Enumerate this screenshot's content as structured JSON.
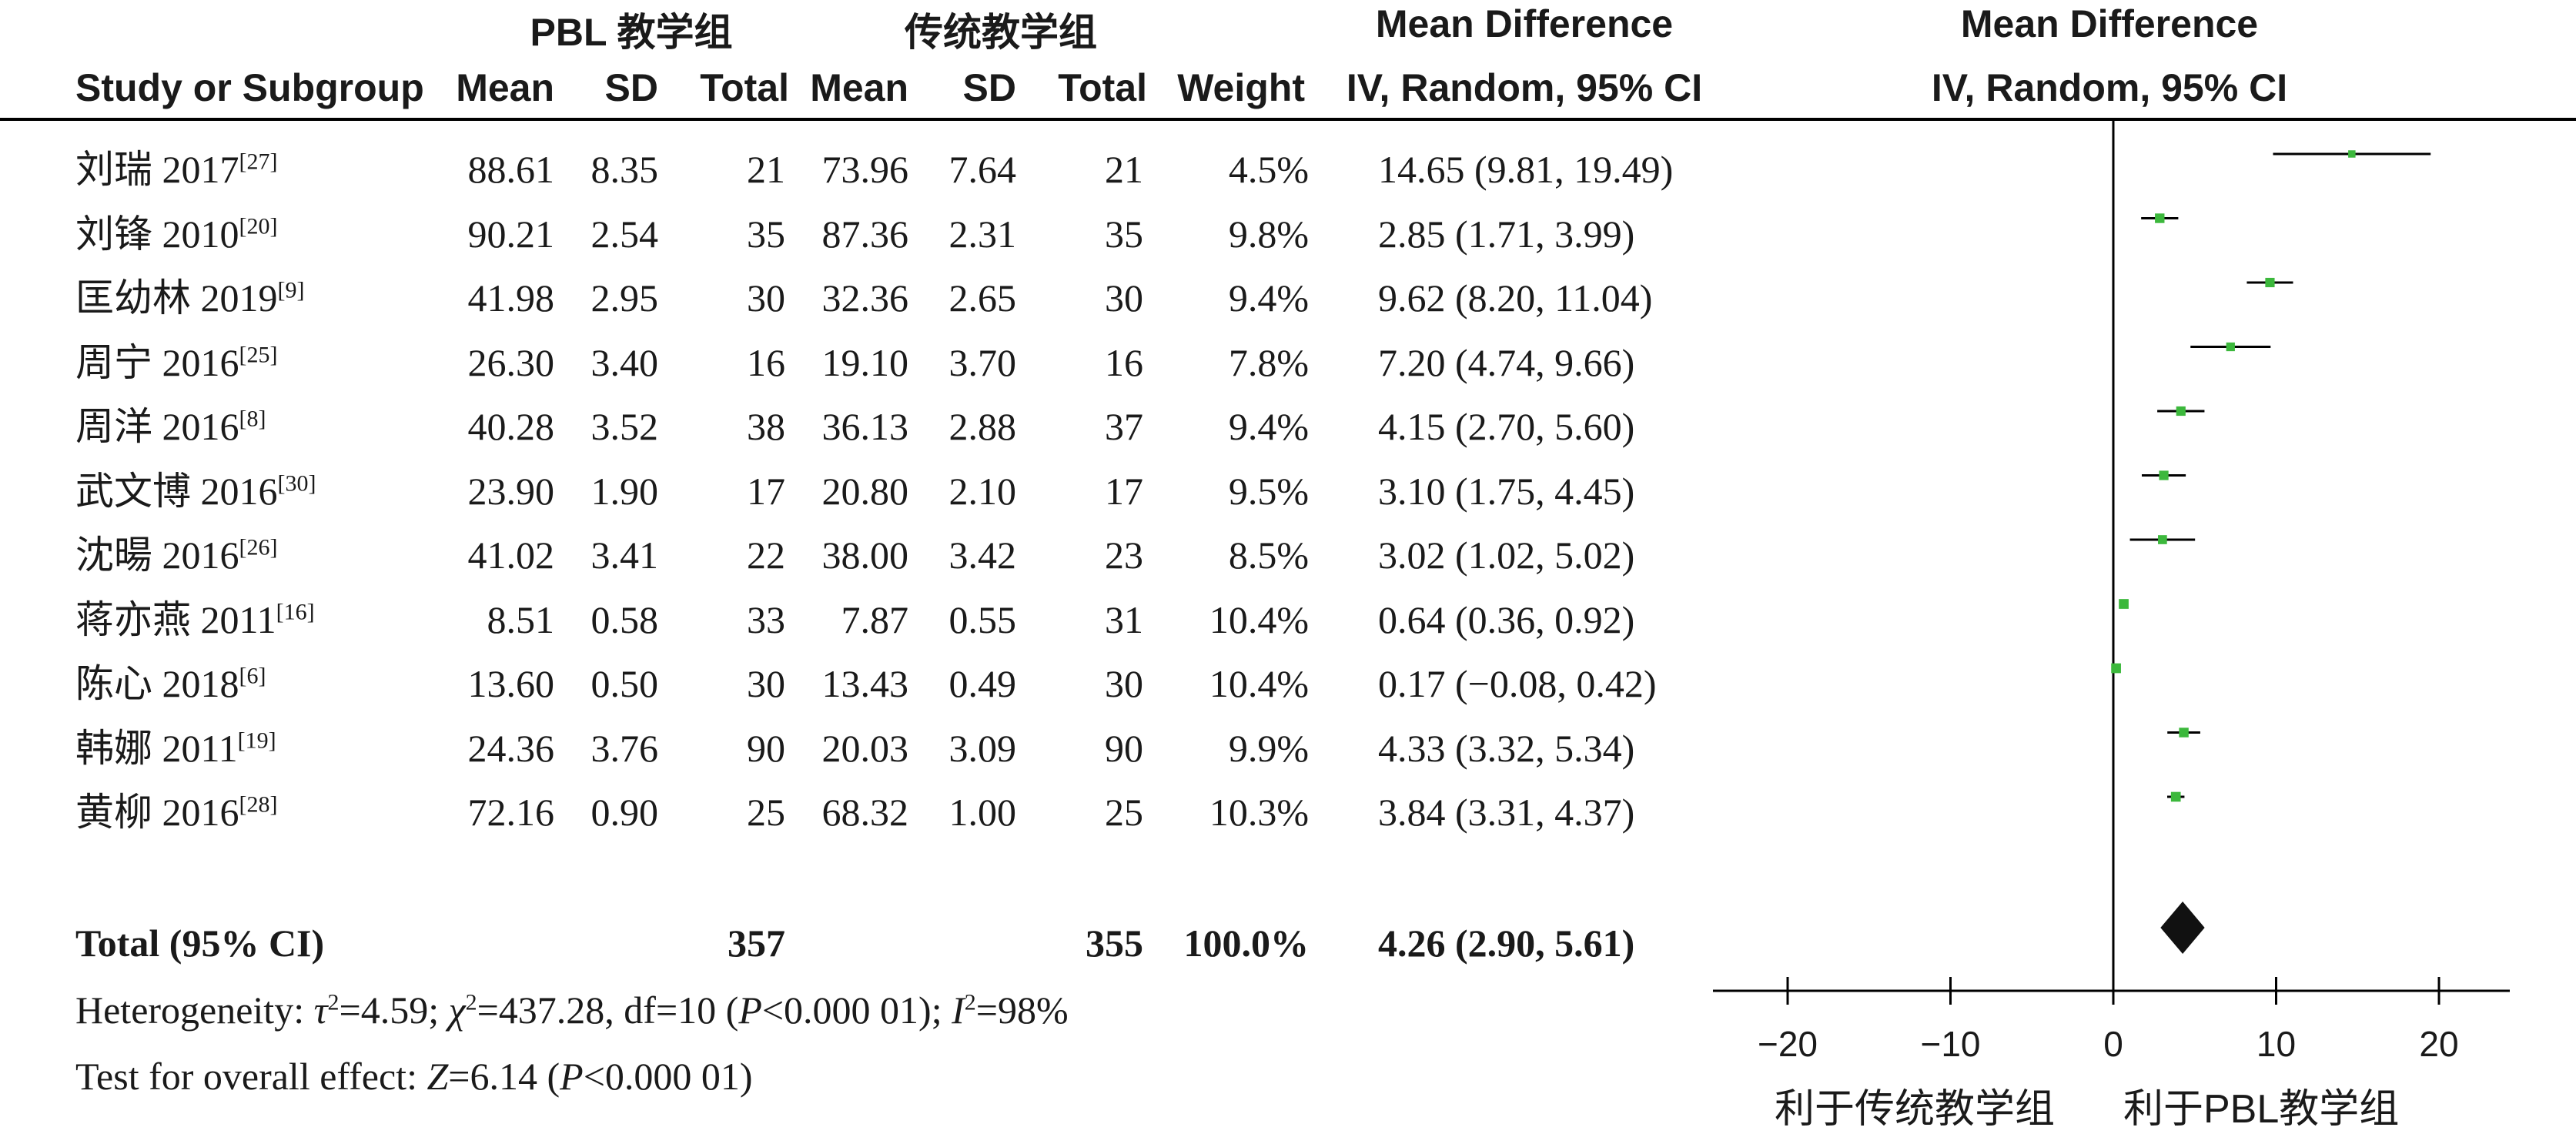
{
  "header": {
    "group1": "PBL 教学组",
    "group2": "传统教学组",
    "md_header": "Mean Difference",
    "md_sub": "IV, Random, 95% CI",
    "plot_header": "Mean Difference",
    "plot_sub": "IV, Random, 95% CI",
    "study": "Study or Subgroup",
    "mean1": "Mean",
    "sd1": "SD",
    "total1": "Total",
    "mean2": "Mean",
    "sd2": "SD",
    "total2": "Total",
    "weight": "Weight"
  },
  "rows": [
    {
      "study": "刘瑞 2017",
      "ref": "[27]",
      "mean1": "88.61",
      "sd1": "8.35",
      "n1": "21",
      "mean2": "73.96",
      "sd2": "7.64",
      "n2": "21",
      "weight": "4.5%",
      "ci": "14.65 (9.81, 19.49)"
    },
    {
      "study": "刘锋 2010",
      "ref": "[20]",
      "mean1": "90.21",
      "sd1": "2.54",
      "n1": "35",
      "mean2": "87.36",
      "sd2": "2.31",
      "n2": "35",
      "weight": "9.8%",
      "ci": "2.85 (1.71, 3.99)"
    },
    {
      "study": "匡幼林 2019",
      "ref": "[9]",
      "mean1": "41.98",
      "sd1": "2.95",
      "n1": "30",
      "mean2": "32.36",
      "sd2": "2.65",
      "n2": "30",
      "weight": "9.4%",
      "ci": "9.62 (8.20, 11.04)"
    },
    {
      "study": "周宁 2016",
      "ref": "[25]",
      "mean1": "26.30",
      "sd1": "3.40",
      "n1": "16",
      "mean2": "19.10",
      "sd2": "3.70",
      "n2": "16",
      "weight": "7.8%",
      "ci": "7.20 (4.74, 9.66)"
    },
    {
      "study": "周洋 2016",
      "ref": "[8]",
      "mean1": "40.28",
      "sd1": "3.52",
      "n1": "38",
      "mean2": "36.13",
      "sd2": "2.88",
      "n2": "37",
      "weight": "9.4%",
      "ci": "4.15 (2.70, 5.60)"
    },
    {
      "study": "武文博 2016",
      "ref": "[30]",
      "mean1": "23.90",
      "sd1": "1.90",
      "n1": "17",
      "mean2": "20.80",
      "sd2": "2.10",
      "n2": "17",
      "weight": "9.5%",
      "ci": "3.10 (1.75, 4.45)"
    },
    {
      "study": "沈暘 2016",
      "ref": "[26]",
      "mean1": "41.02",
      "sd1": "3.41",
      "n1": "22",
      "mean2": "38.00",
      "sd2": "3.42",
      "n2": "23",
      "weight": "8.5%",
      "ci": "3.02 (1.02, 5.02)"
    },
    {
      "study": "蒋亦燕 2011",
      "ref": "[16]",
      "mean1": "8.51",
      "sd1": "0.58",
      "n1": "33",
      "mean2": "7.87",
      "sd2": "0.55",
      "n2": "31",
      "weight": "10.4%",
      "ci": "0.64 (0.36, 0.92)"
    },
    {
      "study": "陈心 2018",
      "ref": "[6]",
      "mean1": "13.60",
      "sd1": "0.50",
      "n1": "30",
      "mean2": "13.43",
      "sd2": "0.49",
      "n2": "30",
      "weight": "10.4%",
      "ci": "0.17 (−0.08, 0.42)"
    },
    {
      "study": "韩娜 2011",
      "ref": "[19]",
      "mean1": "24.36",
      "sd1": "3.76",
      "n1": "90",
      "mean2": "20.03",
      "sd2": "3.09",
      "n2": "90",
      "weight": "9.9%",
      "ci": "4.33 (3.32, 5.34)"
    },
    {
      "study": "黄柳 2016",
      "ref": "[28]",
      "mean1": "72.16",
      "sd1": "0.90",
      "n1": "25",
      "mean2": "68.32",
      "sd2": "1.00",
      "n2": "25",
      "weight": "10.3%",
      "ci": "3.84 (3.31, 4.37)"
    }
  ],
  "total": {
    "label": "Total (95% CI)",
    "n1": "357",
    "n2": "355",
    "weight": "100.0%",
    "ci": "4.26 (2.90, 5.61)"
  },
  "heterogeneity": {
    "prefix": "Heterogeneity: ",
    "tau": "τ",
    "tau_val": "=4.59; ",
    "chi": "χ",
    "chi_val": "=437.28, df=10 (",
    "p": "P",
    "p_val": "<0.000 01); ",
    "i": "I",
    "i_val": "=98%",
    "sq": "2"
  },
  "overall": {
    "prefix": "Test for overall effect: ",
    "z": "Z",
    "z_val": "=6.14 (",
    "p": "P",
    "p_val": "<0.000 01)"
  },
  "favours": {
    "left": "利于传统教学组",
    "right": "利于PBL教学组"
  },
  "colors": {
    "marker": "#3cb83c",
    "diamond": "#111111",
    "line": "#000000"
  },
  "chart_data": {
    "type": "forest",
    "xlim": [
      -20,
      20
    ],
    "ticks": [
      -20,
      -10,
      0,
      10,
      20
    ],
    "studies": [
      {
        "name": "刘瑞 2017",
        "md": 14.65,
        "lo": 9.81,
        "hi": 19.49,
        "weight": 4.5
      },
      {
        "name": "刘锋 2010",
        "md": 2.85,
        "lo": 1.71,
        "hi": 3.99,
        "weight": 9.8
      },
      {
        "name": "匡幼林 2019",
        "md": 9.62,
        "lo": 8.2,
        "hi": 11.04,
        "weight": 9.4
      },
      {
        "name": "周宁 2016",
        "md": 7.2,
        "lo": 4.74,
        "hi": 9.66,
        "weight": 7.8
      },
      {
        "name": "周洋 2016",
        "md": 4.15,
        "lo": 2.7,
        "hi": 5.6,
        "weight": 9.4
      },
      {
        "name": "武文博 2016",
        "md": 3.1,
        "lo": 1.75,
        "hi": 4.45,
        "weight": 9.5
      },
      {
        "name": "沈暘 2016",
        "md": 3.02,
        "lo": 1.02,
        "hi": 5.02,
        "weight": 8.5
      },
      {
        "name": "蒋亦燕 2011",
        "md": 0.64,
        "lo": 0.36,
        "hi": 0.92,
        "weight": 10.4
      },
      {
        "name": "陈心 2018",
        "md": 0.17,
        "lo": -0.08,
        "hi": 0.42,
        "weight": 10.4
      },
      {
        "name": "韩娜 2011",
        "md": 4.33,
        "lo": 3.32,
        "hi": 5.34,
        "weight": 9.9
      },
      {
        "name": "黄柳 2016",
        "md": 3.84,
        "lo": 3.31,
        "hi": 4.37,
        "weight": 10.3
      }
    ],
    "pooled": {
      "md": 4.26,
      "lo": 2.9,
      "hi": 5.61
    }
  }
}
